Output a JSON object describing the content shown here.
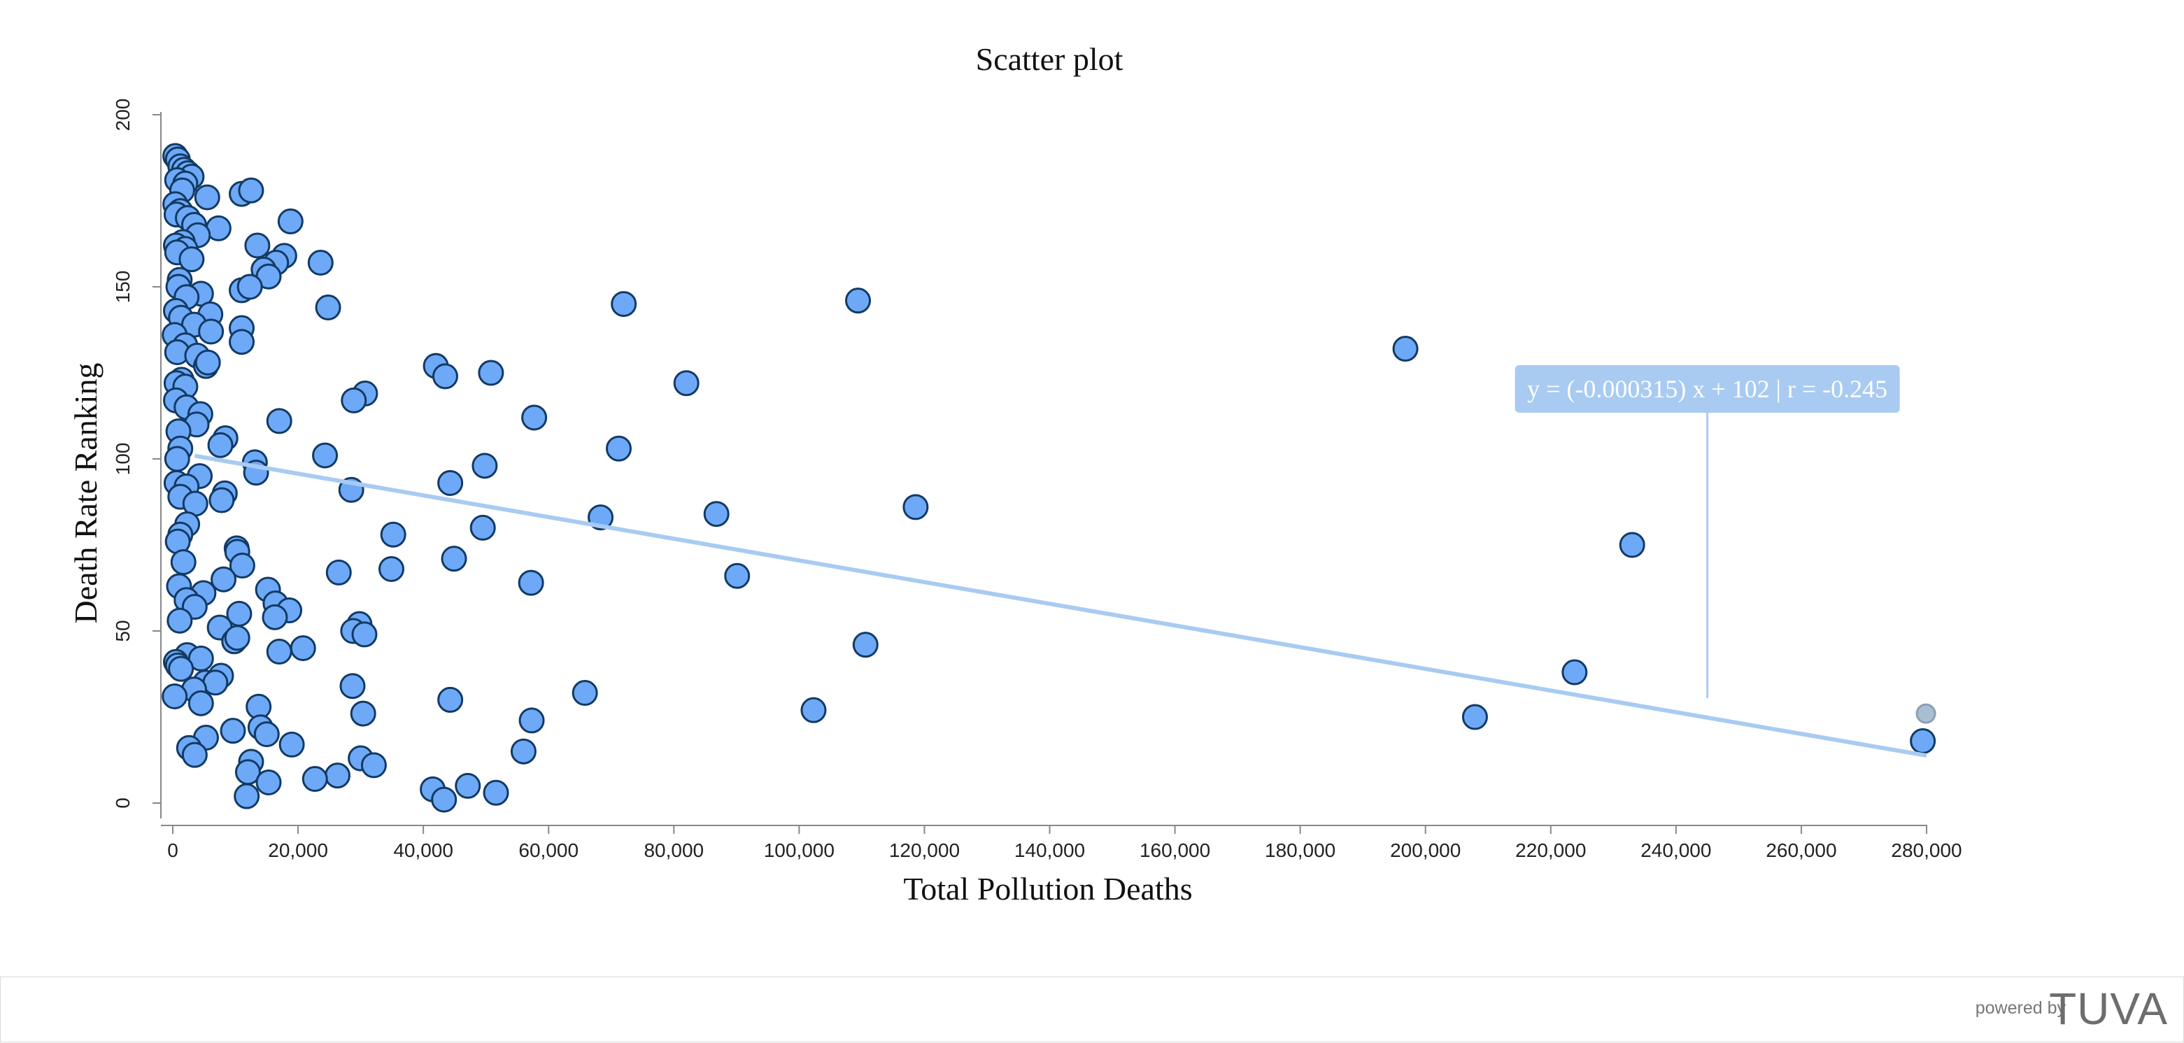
{
  "chart_data": {
    "type": "scatter",
    "title": "Scatter plot",
    "xlabel": "Total Pollution Deaths",
    "ylabel": "Death Rate Ranking",
    "xlim": [
      0,
      280000
    ],
    "ylim": [
      0,
      200
    ],
    "xticks": [
      0,
      20000,
      40000,
      60000,
      80000,
      100000,
      120000,
      140000,
      160000,
      180000,
      200000,
      220000,
      240000,
      260000,
      280000
    ],
    "xtick_labels": [
      "0",
      "20,000",
      "40,000",
      "60,000",
      "80,000",
      "100,000",
      "120,000",
      "140,000",
      "160,000",
      "180,000",
      "200,000",
      "220,000",
      "240,000",
      "260,000",
      "280,000"
    ],
    "yticks": [
      0,
      50,
      100,
      150,
      200
    ],
    "ytick_labels": [
      "0",
      "50",
      "100",
      "150",
      "200"
    ],
    "grid": false,
    "trendline": {
      "slope": -0.000315,
      "intercept": 102,
      "r": -0.245,
      "label": "y = (-0.000315) x + 102 | r = -0.245",
      "color": "#a9cbf2"
    },
    "point_color": "#6ea9f8",
    "point_stroke": "#123a63",
    "points": [
      [
        400,
        188
      ],
      [
        800,
        187
      ],
      [
        1200,
        185
      ],
      [
        1800,
        184
      ],
      [
        2400,
        183
      ],
      [
        3000,
        182
      ],
      [
        700,
        181
      ],
      [
        2000,
        180
      ],
      [
        1500,
        178
      ],
      [
        11000,
        177
      ],
      [
        12500,
        178
      ],
      [
        5500,
        176
      ],
      [
        400,
        174
      ],
      [
        1200,
        172
      ],
      [
        600,
        171
      ],
      [
        2400,
        170
      ],
      [
        3400,
        168
      ],
      [
        7300,
        167
      ],
      [
        18800,
        169
      ],
      [
        4000,
        165
      ],
      [
        1600,
        163
      ],
      [
        500,
        162
      ],
      [
        13500,
        162
      ],
      [
        2000,
        161
      ],
      [
        700,
        160
      ],
      [
        17800,
        159
      ],
      [
        3000,
        158
      ],
      [
        16500,
        157
      ],
      [
        23600,
        157
      ],
      [
        14500,
        155
      ],
      [
        15300,
        153
      ],
      [
        1100,
        152
      ],
      [
        900,
        150
      ],
      [
        11000,
        149
      ],
      [
        12300,
        150
      ],
      [
        4500,
        148
      ],
      [
        2200,
        147
      ],
      [
        72000,
        145
      ],
      [
        109400,
        146
      ],
      [
        24800,
        144
      ],
      [
        6000,
        142
      ],
      [
        500,
        143
      ],
      [
        1300,
        141
      ],
      [
        3400,
        139
      ],
      [
        11000,
        138
      ],
      [
        6100,
        137
      ],
      [
        300,
        136
      ],
      [
        2000,
        133
      ],
      [
        11000,
        134
      ],
      [
        700,
        131
      ],
      [
        3900,
        130
      ],
      [
        5300,
        127
      ],
      [
        5600,
        128
      ],
      [
        196800,
        132
      ],
      [
        42000,
        127
      ],
      [
        43500,
        124
      ],
      [
        50800,
        125
      ],
      [
        1400,
        123
      ],
      [
        600,
        122
      ],
      [
        2000,
        121
      ],
      [
        82000,
        122
      ],
      [
        30700,
        119
      ],
      [
        28900,
        117
      ],
      [
        500,
        117
      ],
      [
        2200,
        115
      ],
      [
        4400,
        113
      ],
      [
        57700,
        112
      ],
      [
        17000,
        111
      ],
      [
        3800,
        110
      ],
      [
        900,
        108
      ],
      [
        8400,
        106
      ],
      [
        7600,
        104
      ],
      [
        71200,
        103
      ],
      [
        1200,
        103
      ],
      [
        24300,
        101
      ],
      [
        700,
        100
      ],
      [
        13100,
        99
      ],
      [
        49800,
        98
      ],
      [
        13300,
        96
      ],
      [
        4300,
        95
      ],
      [
        600,
        93
      ],
      [
        44300,
        93
      ],
      [
        28500,
        91
      ],
      [
        2200,
        92
      ],
      [
        8300,
        90
      ],
      [
        1200,
        89
      ],
      [
        7800,
        88
      ],
      [
        3600,
        87
      ],
      [
        118600,
        86
      ],
      [
        86800,
        84
      ],
      [
        68300,
        83
      ],
      [
        2300,
        81
      ],
      [
        49500,
        80
      ],
      [
        1200,
        78
      ],
      [
        35200,
        78
      ],
      [
        800,
        76
      ],
      [
        10200,
        74
      ],
      [
        10300,
        73
      ],
      [
        233000,
        75
      ],
      [
        1700,
        70
      ],
      [
        44900,
        71
      ],
      [
        11100,
        69
      ],
      [
        34900,
        68
      ],
      [
        26500,
        67
      ],
      [
        90100,
        66
      ],
      [
        57200,
        64
      ],
      [
        8100,
        65
      ],
      [
        1000,
        63
      ],
      [
        15200,
        62
      ],
      [
        4900,
        61
      ],
      [
        2200,
        59
      ],
      [
        16400,
        58
      ],
      [
        3500,
        57
      ],
      [
        18600,
        56
      ],
      [
        10600,
        55
      ],
      [
        16300,
        54
      ],
      [
        1100,
        53
      ],
      [
        29800,
        52
      ],
      [
        7500,
        51
      ],
      [
        28800,
        50
      ],
      [
        30600,
        49
      ],
      [
        9800,
        47
      ],
      [
        10300,
        48
      ],
      [
        110600,
        46
      ],
      [
        20800,
        45
      ],
      [
        17000,
        44
      ],
      [
        2300,
        43
      ],
      [
        4500,
        42
      ],
      [
        500,
        41
      ],
      [
        800,
        40
      ],
      [
        1300,
        39
      ],
      [
        223800,
        38
      ],
      [
        7700,
        37
      ],
      [
        5200,
        35
      ],
      [
        6800,
        35
      ],
      [
        28700,
        34
      ],
      [
        3400,
        33
      ],
      [
        65800,
        32
      ],
      [
        300,
        31
      ],
      [
        44300,
        30
      ],
      [
        4500,
        29
      ],
      [
        13700,
        28
      ],
      [
        102300,
        27
      ],
      [
        30400,
        26
      ],
      [
        207900,
        25
      ],
      [
        57300,
        24
      ],
      [
        14000,
        22
      ],
      [
        9600,
        21
      ],
      [
        15000,
        20
      ],
      [
        5300,
        19
      ],
      [
        279400,
        18
      ],
      [
        19000,
        17
      ],
      [
        2600,
        16
      ],
      [
        56000,
        15
      ],
      [
        3500,
        14
      ],
      [
        30000,
        13
      ],
      [
        12500,
        12
      ],
      [
        32100,
        11
      ],
      [
        12000,
        9
      ],
      [
        26300,
        8
      ],
      [
        22700,
        7
      ],
      [
        15300,
        6
      ],
      [
        47100,
        5
      ],
      [
        41500,
        4
      ],
      [
        51600,
        3
      ],
      [
        11800,
        2
      ],
      [
        43300,
        1
      ]
    ],
    "ghost_point": [
      279900,
      26
    ]
  },
  "footer": {
    "powered_by": "powered by",
    "brand": "TUVA"
  }
}
